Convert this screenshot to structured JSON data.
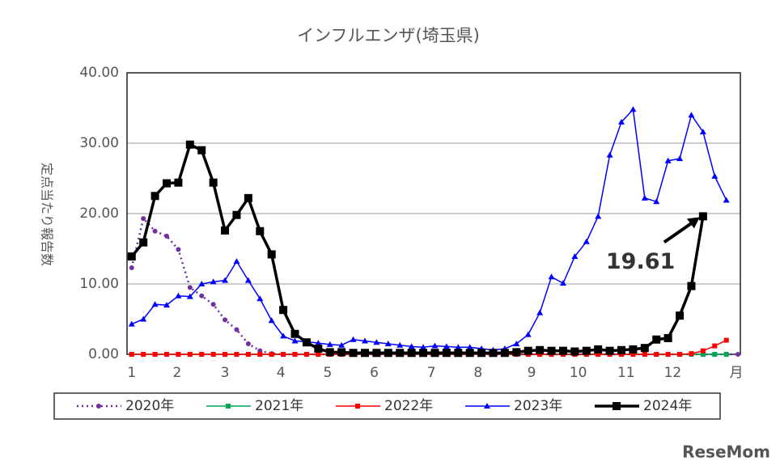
{
  "chart_data": {
    "type": "line",
    "title": "インフルエンザ(埼玉県)",
    "y_label": "定点当たり報告数",
    "x_label": "月",
    "annotation": {
      "text": "19.61",
      "series": 4,
      "index": 49
    },
    "watermark": "ReseMom",
    "xlim": [
      0.6,
      53.2
    ],
    "xticks": [
      {
        "value": 1,
        "label": "1"
      },
      {
        "value": 4.9,
        "label": "2"
      },
      {
        "value": 9,
        "label": "3"
      },
      {
        "value": 13.8,
        "label": "4"
      },
      {
        "value": 17.8,
        "label": "5"
      },
      {
        "value": 21.8,
        "label": "6"
      },
      {
        "value": 26.7,
        "label": "7"
      },
      {
        "value": 30.7,
        "label": "8"
      },
      {
        "value": 35.3,
        "label": "9"
      },
      {
        "value": 39.3,
        "label": "10"
      },
      {
        "value": 43.4,
        "label": "11"
      },
      {
        "value": 47.4,
        "label": "12"
      }
    ],
    "ylim": [
      0,
      40
    ],
    "yticks": [
      {
        "value": 0,
        "label": "0.00"
      },
      {
        "value": 10,
        "label": "10.00"
      },
      {
        "value": 20,
        "label": "20.00"
      },
      {
        "value": 30,
        "label": "30.00"
      },
      {
        "value": 40,
        "label": "40.00"
      }
    ],
    "grid": true,
    "legend": "bottom",
    "series": [
      {
        "name": "2020年",
        "color": "#7030a0",
        "marker": "circle",
        "line_style": "dotted",
        "x": [
          1,
          2,
          3,
          4,
          5,
          6,
          7,
          8,
          9,
          10,
          11,
          12,
          13,
          14,
          15,
          16,
          17,
          18,
          19,
          20,
          21,
          22,
          23,
          24,
          25,
          26,
          27,
          28,
          29,
          30,
          31,
          32,
          33,
          34,
          35,
          36,
          37,
          38,
          39,
          40,
          41,
          42,
          43,
          44,
          45,
          46,
          47,
          48,
          49,
          50,
          51,
          52,
          53
        ],
        "values": [
          12.3,
          19.3,
          17.5,
          16.8,
          14.9,
          9.5,
          8.3,
          7.1,
          4.9,
          3.5,
          1.5,
          0.5,
          0.1,
          0,
          0,
          0,
          0,
          0,
          0,
          0,
          0,
          0,
          0,
          0,
          0,
          0,
          0,
          0,
          0,
          0,
          0,
          0,
          0,
          0,
          0,
          0,
          0,
          0,
          0,
          0,
          0,
          0,
          0,
          0,
          0,
          0,
          0,
          0,
          0,
          0,
          0,
          0,
          0
        ]
      },
      {
        "name": "2021年",
        "color": "#00a650",
        "marker": "square",
        "line_style": "solid",
        "x": [
          1,
          2,
          3,
          4,
          5,
          6,
          7,
          8,
          9,
          10,
          11,
          12,
          13,
          14,
          15,
          16,
          17,
          18,
          19,
          20,
          21,
          22,
          23,
          24,
          25,
          26,
          27,
          28,
          29,
          30,
          31,
          32,
          33,
          34,
          35,
          36,
          37,
          38,
          39,
          40,
          41,
          42,
          43,
          44,
          45,
          46,
          47,
          48,
          49,
          50,
          51,
          52
        ],
        "values": [
          0,
          0,
          0,
          0,
          0,
          0,
          0,
          0,
          0,
          0,
          0,
          0,
          0,
          0,
          0,
          0,
          0,
          0,
          0,
          0,
          0,
          0,
          0,
          0,
          0,
          0,
          0,
          0,
          0,
          0,
          0,
          0,
          0,
          0,
          0,
          0,
          0,
          0,
          0,
          0,
          0,
          0,
          0,
          0,
          0,
          0,
          0,
          0,
          0,
          0,
          0,
          0
        ]
      },
      {
        "name": "2022年",
        "color": "#ff0000",
        "marker": "square",
        "line_style": "solid",
        "x": [
          1,
          2,
          3,
          4,
          5,
          6,
          7,
          8,
          9,
          10,
          11,
          12,
          13,
          14,
          15,
          16,
          17,
          18,
          19,
          20,
          21,
          22,
          23,
          24,
          25,
          26,
          27,
          28,
          29,
          30,
          31,
          32,
          33,
          34,
          35,
          36,
          37,
          38,
          39,
          40,
          41,
          42,
          43,
          44,
          45,
          46,
          47,
          48,
          49,
          50,
          51,
          52
        ],
        "values": [
          0,
          0,
          0,
          0,
          0,
          0,
          0,
          0,
          0,
          0,
          0,
          0,
          0,
          0,
          0,
          0,
          0,
          0,
          0,
          0,
          0,
          0,
          0,
          0,
          0,
          0,
          0,
          0,
          0,
          0,
          0,
          0,
          0,
          0,
          0,
          0,
          0,
          0,
          0,
          0,
          0,
          0,
          0,
          0,
          0,
          0,
          0,
          0,
          0.1,
          0.5,
          1.2,
          2.0
        ]
      },
      {
        "name": "2023年",
        "color": "#0000ff",
        "marker": "triangle",
        "line_style": "solid",
        "x": [
          1,
          2,
          3,
          4,
          5,
          6,
          7,
          8,
          9,
          10,
          11,
          12,
          13,
          14,
          15,
          16,
          17,
          18,
          19,
          20,
          21,
          22,
          23,
          24,
          25,
          26,
          27,
          28,
          29,
          30,
          31,
          32,
          33,
          34,
          35,
          36,
          37,
          38,
          39,
          40,
          41,
          42,
          43,
          44,
          45,
          46,
          47,
          48,
          49,
          50,
          51,
          52
        ],
        "values": [
          4.3,
          5.0,
          7.1,
          7.0,
          8.3,
          8.2,
          10.0,
          10.3,
          10.5,
          13.2,
          10.5,
          7.9,
          4.8,
          2.6,
          1.9,
          1.8,
          1.6,
          1.4,
          1.3,
          2.1,
          1.9,
          1.7,
          1.5,
          1.3,
          1.1,
          1.0,
          1.2,
          1.1,
          1.0,
          1.0,
          0.8,
          0.6,
          0.8,
          1.5,
          2.8,
          5.9,
          11.0,
          10.1,
          13.9,
          16.0,
          19.6,
          28.3,
          33.0,
          34.8,
          22.2,
          21.7,
          27.5,
          27.8,
          34.0,
          31.6,
          25.3,
          21.9
        ]
      },
      {
        "name": "2024年",
        "color": "#000000",
        "marker": "bigsquare",
        "line_style": "bold",
        "x": [
          1,
          2,
          3,
          4,
          5,
          6,
          7,
          8,
          9,
          10,
          11,
          12,
          13,
          14,
          15,
          16,
          17,
          18,
          19,
          20,
          21,
          22,
          23,
          24,
          25,
          26,
          27,
          28,
          29,
          30,
          31,
          32,
          33,
          34,
          35,
          36,
          37,
          38,
          39,
          40,
          41,
          42,
          43,
          44,
          45,
          46,
          47,
          48,
          49,
          50
        ],
        "values": [
          13.9,
          15.9,
          22.5,
          24.3,
          24.4,
          29.8,
          29.0,
          24.4,
          17.6,
          19.8,
          22.2,
          17.5,
          14.2,
          6.3,
          2.9,
          1.7,
          0.8,
          0.3,
          0.3,
          0.2,
          0.2,
          0.2,
          0.2,
          0.2,
          0.2,
          0.2,
          0.2,
          0.2,
          0.2,
          0.2,
          0.2,
          0.2,
          0.2,
          0.3,
          0.5,
          0.6,
          0.5,
          0.5,
          0.4,
          0.5,
          0.7,
          0.5,
          0.6,
          0.7,
          0.9,
          2.1,
          2.3,
          5.5,
          9.7,
          19.61
        ]
      }
    ]
  }
}
